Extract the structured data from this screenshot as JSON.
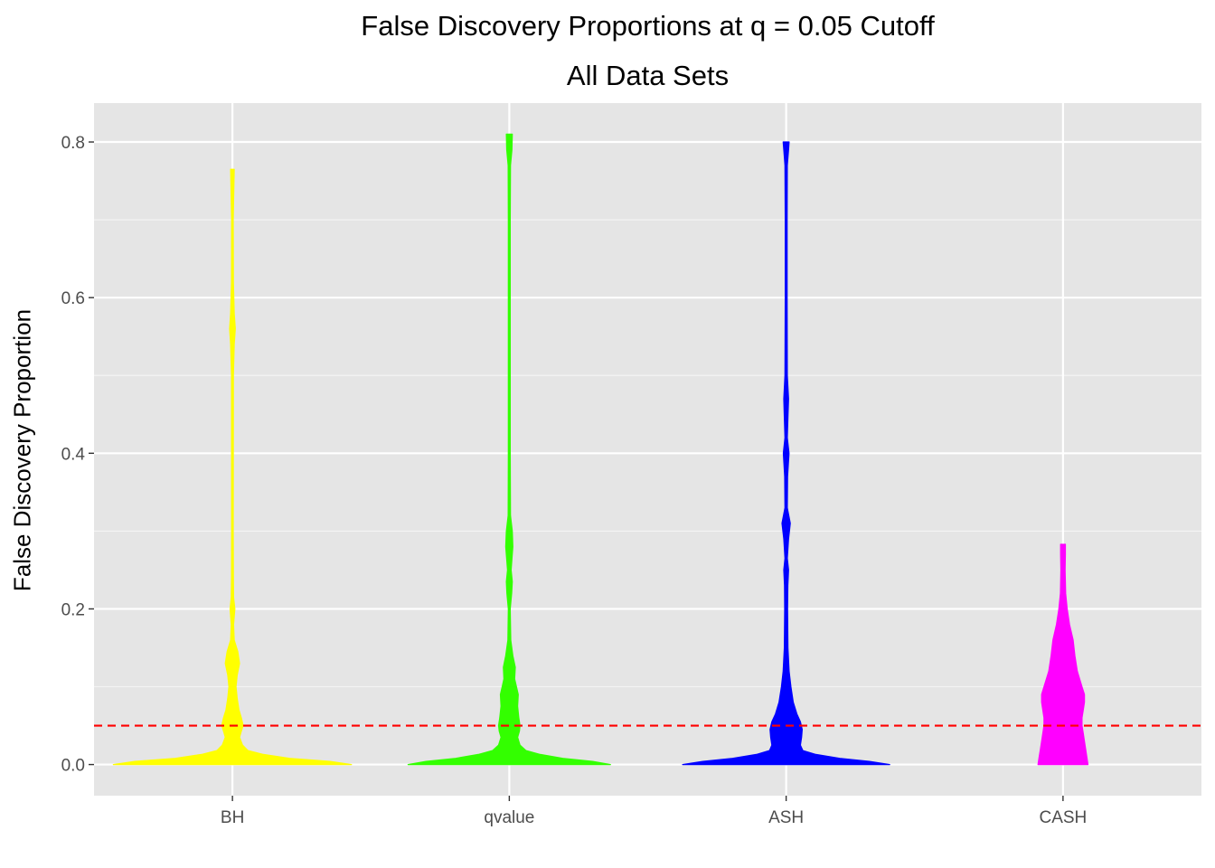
{
  "chart_data": {
    "type": "violin",
    "title": "False Discovery Proportions at q = 0.05 Cutoff",
    "subtitle": "All Data Sets",
    "xlabel": "",
    "ylabel": "False Discovery Proportion",
    "categories": [
      "BH",
      "qvalue",
      "ASH",
      "CASH"
    ],
    "ylim": [
      -0.04,
      0.85
    ],
    "yticks": [
      0.0,
      0.2,
      0.4,
      0.6,
      0.8
    ],
    "ytick_labels": [
      "0.0",
      "0.2",
      "0.4",
      "0.6",
      "0.8"
    ],
    "grid": true,
    "reference_line": {
      "y": 0.05,
      "color": "#ff0000",
      "style": "dashed"
    },
    "colors": [
      "#ffff00",
      "#33ff00",
      "#0000ff",
      "#ff00ff"
    ],
    "violins": [
      {
        "category": "BH",
        "ymax": 0.765,
        "profile": [
          [
            0.0,
            1.0
          ],
          [
            0.004,
            0.82
          ],
          [
            0.008,
            0.48
          ],
          [
            0.013,
            0.26
          ],
          [
            0.018,
            0.13
          ],
          [
            0.025,
            0.085
          ],
          [
            0.035,
            0.06
          ],
          [
            0.043,
            0.075
          ],
          [
            0.05,
            0.09
          ],
          [
            0.06,
            0.075
          ],
          [
            0.07,
            0.055
          ],
          [
            0.085,
            0.04
          ],
          [
            0.1,
            0.03
          ],
          [
            0.115,
            0.04
          ],
          [
            0.13,
            0.06
          ],
          [
            0.145,
            0.045
          ],
          [
            0.16,
            0.015
          ],
          [
            0.18,
            0.01
          ],
          [
            0.2,
            0.02
          ],
          [
            0.215,
            0.01
          ],
          [
            0.24,
            0.008
          ],
          [
            0.3,
            0.007
          ],
          [
            0.5,
            0.008
          ],
          [
            0.54,
            0.015
          ],
          [
            0.56,
            0.024
          ],
          [
            0.58,
            0.015
          ],
          [
            0.62,
            0.008
          ],
          [
            0.7,
            0.007
          ],
          [
            0.765,
            0.015
          ]
        ]
      },
      {
        "category": "qvalue",
        "ymax": 0.81,
        "profile": [
          [
            0.0,
            0.85
          ],
          [
            0.004,
            0.7
          ],
          [
            0.008,
            0.45
          ],
          [
            0.013,
            0.26
          ],
          [
            0.018,
            0.14
          ],
          [
            0.025,
            0.09
          ],
          [
            0.035,
            0.07
          ],
          [
            0.043,
            0.085
          ],
          [
            0.05,
            0.09
          ],
          [
            0.06,
            0.08
          ],
          [
            0.075,
            0.07
          ],
          [
            0.09,
            0.075
          ],
          [
            0.1,
            0.06
          ],
          [
            0.11,
            0.045
          ],
          [
            0.125,
            0.05
          ],
          [
            0.14,
            0.03
          ],
          [
            0.16,
            0.012
          ],
          [
            0.2,
            0.008
          ],
          [
            0.22,
            0.02
          ],
          [
            0.235,
            0.025
          ],
          [
            0.25,
            0.015
          ],
          [
            0.28,
            0.03
          ],
          [
            0.3,
            0.025
          ],
          [
            0.32,
            0.01
          ],
          [
            0.4,
            0.008
          ],
          [
            0.7,
            0.008
          ],
          [
            0.77,
            0.01
          ],
          [
            0.79,
            0.022
          ],
          [
            0.81,
            0.025
          ]
        ]
      },
      {
        "category": "ASH",
        "ymax": 0.8,
        "profile": [
          [
            0.0,
            0.87
          ],
          [
            0.004,
            0.7
          ],
          [
            0.008,
            0.45
          ],
          [
            0.013,
            0.25
          ],
          [
            0.018,
            0.14
          ],
          [
            0.025,
            0.12
          ],
          [
            0.035,
            0.13
          ],
          [
            0.045,
            0.135
          ],
          [
            0.055,
            0.12
          ],
          [
            0.065,
            0.09
          ],
          [
            0.08,
            0.06
          ],
          [
            0.1,
            0.04
          ],
          [
            0.12,
            0.025
          ],
          [
            0.15,
            0.015
          ],
          [
            0.2,
            0.012
          ],
          [
            0.23,
            0.014
          ],
          [
            0.25,
            0.02
          ],
          [
            0.265,
            0.01
          ],
          [
            0.29,
            0.02
          ],
          [
            0.31,
            0.035
          ],
          [
            0.33,
            0.01
          ],
          [
            0.37,
            0.012
          ],
          [
            0.4,
            0.024
          ],
          [
            0.42,
            0.01
          ],
          [
            0.45,
            0.016
          ],
          [
            0.47,
            0.02
          ],
          [
            0.5,
            0.01
          ],
          [
            0.6,
            0.008
          ],
          [
            0.7,
            0.008
          ],
          [
            0.77,
            0.01
          ],
          [
            0.79,
            0.02
          ],
          [
            0.8,
            0.025
          ]
        ]
      },
      {
        "category": "CASH",
        "ymax": 0.283,
        "profile": [
          [
            0.0,
            0.21
          ],
          [
            0.01,
            0.2
          ],
          [
            0.02,
            0.19
          ],
          [
            0.03,
            0.18
          ],
          [
            0.04,
            0.17
          ],
          [
            0.05,
            0.16
          ],
          [
            0.06,
            0.16
          ],
          [
            0.07,
            0.17
          ],
          [
            0.08,
            0.18
          ],
          [
            0.09,
            0.18
          ],
          [
            0.1,
            0.16
          ],
          [
            0.12,
            0.12
          ],
          [
            0.14,
            0.1
          ],
          [
            0.16,
            0.085
          ],
          [
            0.18,
            0.055
          ],
          [
            0.2,
            0.035
          ],
          [
            0.22,
            0.022
          ],
          [
            0.25,
            0.018
          ],
          [
            0.27,
            0.02
          ],
          [
            0.283,
            0.02
          ]
        ]
      }
    ]
  }
}
